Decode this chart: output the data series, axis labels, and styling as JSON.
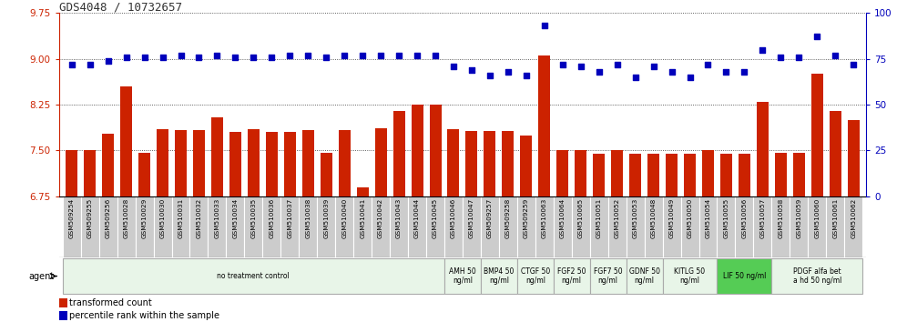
{
  "title": "GDS4048 / 10732657",
  "samples": [
    "GSM509254",
    "GSM509255",
    "GSM509256",
    "GSM510028",
    "GSM510029",
    "GSM510030",
    "GSM510031",
    "GSM510032",
    "GSM510033",
    "GSM510034",
    "GSM510035",
    "GSM510036",
    "GSM510037",
    "GSM510038",
    "GSM510039",
    "GSM510040",
    "GSM510041",
    "GSM510042",
    "GSM510043",
    "GSM510044",
    "GSM510045",
    "GSM510046",
    "GSM510047",
    "GSM509257",
    "GSM509258",
    "GSM509259",
    "GSM510063",
    "GSM510064",
    "GSM510065",
    "GSM510051",
    "GSM510052",
    "GSM510053",
    "GSM510048",
    "GSM510049",
    "GSM510050",
    "GSM510054",
    "GSM510055",
    "GSM510056",
    "GSM510057",
    "GSM510058",
    "GSM510059",
    "GSM510060",
    "GSM510061",
    "GSM510062"
  ],
  "bar_values": [
    7.5,
    7.5,
    7.78,
    8.55,
    7.47,
    7.85,
    7.84,
    7.84,
    8.05,
    7.8,
    7.85,
    7.8,
    7.8,
    7.83,
    7.47,
    7.83,
    6.9,
    7.87,
    8.15,
    8.25,
    8.25,
    7.85,
    7.82,
    7.82,
    7.82,
    7.75,
    9.05,
    7.5,
    7.5,
    7.45,
    7.5,
    7.45,
    7.45,
    7.45,
    7.45,
    7.5,
    7.45,
    7.45,
    8.3,
    7.47,
    7.47,
    8.75,
    8.15,
    8.0
  ],
  "percentile_values": [
    72,
    72,
    74,
    76,
    76,
    76,
    77,
    76,
    77,
    76,
    76,
    76,
    77,
    77,
    76,
    77,
    77,
    77,
    77,
    77,
    77,
    71,
    69,
    66,
    68,
    66,
    93,
    72,
    71,
    68,
    72,
    65,
    71,
    68,
    65,
    72,
    68,
    68,
    80,
    76,
    76,
    87,
    77,
    72
  ],
  "ylim_left": [
    6.75,
    9.75
  ],
  "ylim_right": [
    0,
    100
  ],
  "yticks_left": [
    6.75,
    7.5,
    8.25,
    9.0,
    9.75
  ],
  "yticks_right": [
    0,
    25,
    50,
    75,
    100
  ],
  "bar_color": "#cc2200",
  "square_color": "#0000bb",
  "agent_groups": [
    {
      "label": "no treatment control",
      "start": 0,
      "end": 21,
      "color": "#e8f5e8",
      "border": "#aaaaaa"
    },
    {
      "label": "AMH 50\nng/ml",
      "start": 21,
      "end": 23,
      "color": "#e8f5e8",
      "border": "#aaaaaa"
    },
    {
      "label": "BMP4 50\nng/ml",
      "start": 23,
      "end": 25,
      "color": "#e8f5e8",
      "border": "#aaaaaa"
    },
    {
      "label": "CTGF 50\nng/ml",
      "start": 25,
      "end": 27,
      "color": "#e8f5e8",
      "border": "#aaaaaa"
    },
    {
      "label": "FGF2 50\nng/ml",
      "start": 27,
      "end": 29,
      "color": "#e8f5e8",
      "border": "#aaaaaa"
    },
    {
      "label": "FGF7 50\nng/ml",
      "start": 29,
      "end": 31,
      "color": "#e8f5e8",
      "border": "#aaaaaa"
    },
    {
      "label": "GDNF 50\nng/ml",
      "start": 31,
      "end": 33,
      "color": "#e8f5e8",
      "border": "#aaaaaa"
    },
    {
      "label": "KITLG 50\nng/ml",
      "start": 33,
      "end": 36,
      "color": "#e8f5e8",
      "border": "#aaaaaa"
    },
    {
      "label": "LIF 50 ng/ml",
      "start": 36,
      "end": 39,
      "color": "#55cc55",
      "border": "#aaaaaa"
    },
    {
      "label": "PDGF alfa bet\na hd 50 ng/ml",
      "start": 39,
      "end": 44,
      "color": "#e8f5e8",
      "border": "#aaaaaa"
    }
  ],
  "bar_color_left": "#cc2200",
  "axis_color_left": "#cc2200",
  "axis_color_right": "#0000bb",
  "sample_box_color": "#cccccc",
  "sample_box_border": "#ffffff",
  "grid_linestyle": "dotted",
  "grid_color": "#333333",
  "legend_bar_label": "transformed count",
  "legend_sq_label": "percentile rank within the sample",
  "agent_label": "agent"
}
